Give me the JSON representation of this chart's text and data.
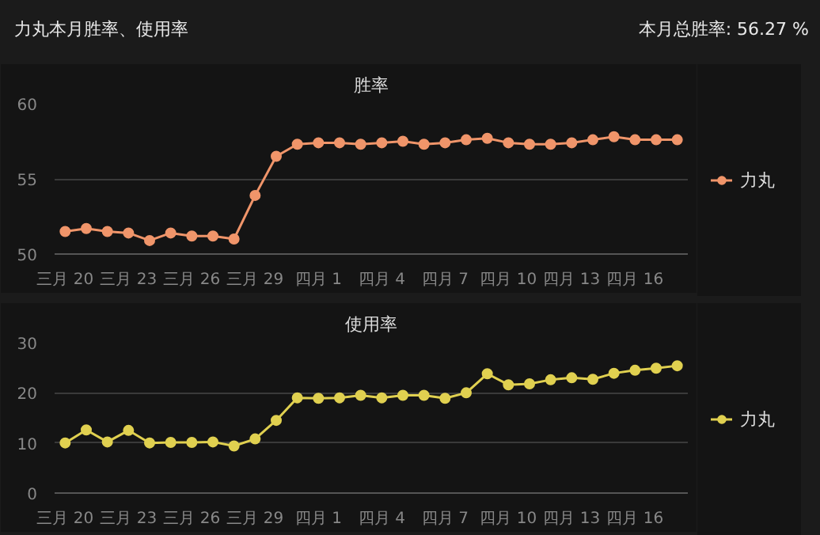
{
  "chart_data": [
    {
      "type": "line",
      "title": "胜率",
      "annotations": [
        "力丸本月胜率、使用率",
        "本月总胜率: 56.27 %"
      ],
      "categories": [
        "三月 20",
        null,
        null,
        "三月 23",
        null,
        null,
        "三月 26",
        null,
        null,
        "三月 29",
        null,
        null,
        "四月 1",
        null,
        null,
        "四月 4",
        null,
        null,
        "四月 7",
        null,
        null,
        "四月 10",
        null,
        null,
        "四月 13",
        null,
        null,
        "四月 16",
        null,
        null
      ],
      "series": [
        {
          "name": "力丸",
          "color": "#f0956a",
          "values": [
            51.5,
            51.7,
            51.5,
            51.4,
            50.9,
            51.4,
            51.2,
            51.2,
            51.0,
            53.9,
            56.5,
            57.3,
            57.4,
            57.4,
            57.3,
            57.4,
            57.5,
            57.3,
            57.4,
            57.6,
            57.7,
            57.4,
            57.3,
            57.3,
            57.4,
            57.6,
            57.8,
            57.6,
            57.6,
            57.6
          ]
        }
      ],
      "ylim": [
        50,
        60
      ],
      "yticks": [
        50,
        55,
        60
      ],
      "grid": "y",
      "legend": "right",
      "marker": "circle",
      "line_style": "solid"
    },
    {
      "type": "line",
      "title": "使用率",
      "categories": [
        "三月 20",
        null,
        null,
        "三月 23",
        null,
        null,
        "三月 26",
        null,
        null,
        "三月 29",
        null,
        null,
        "四月 1",
        null,
        null,
        "四月 4",
        null,
        null,
        "四月 7",
        null,
        null,
        "四月 10",
        null,
        null,
        "四月 13",
        null,
        null,
        "四月 16",
        null,
        null
      ],
      "series": [
        {
          "name": "力丸",
          "color": "#e0d050",
          "values": [
            10.0,
            12.6,
            10.2,
            12.5,
            10.0,
            10.1,
            10.1,
            10.2,
            9.4,
            10.8,
            14.5,
            19.0,
            18.9,
            19.0,
            19.5,
            19.0,
            19.5,
            19.5,
            18.9,
            20.0,
            23.8,
            21.6,
            21.8,
            22.6,
            23.0,
            22.7,
            23.9,
            24.5,
            24.9,
            25.4
          ]
        }
      ],
      "ylim": [
        0,
        30
      ],
      "yticks": [
        0,
        10,
        20,
        30
      ],
      "grid": "y",
      "legend": "right",
      "marker": "circle",
      "line_style": "solid"
    }
  ]
}
